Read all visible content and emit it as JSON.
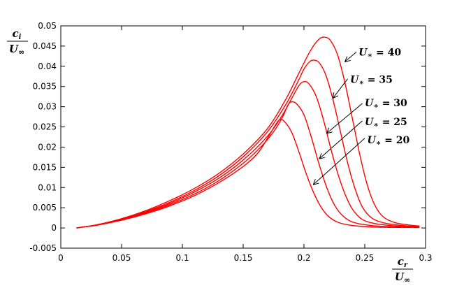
{
  "chart_data": {
    "type": "line",
    "xlim": [
      0,
      0.3
    ],
    "ylim": [
      -0.005,
      0.05
    ],
    "x_ticks": [
      {
        "value": 0,
        "label": "0"
      },
      {
        "value": 0.05,
        "label": "0.05"
      },
      {
        "value": 0.1,
        "label": "0.1"
      },
      {
        "value": 0.15,
        "label": "0.15"
      },
      {
        "value": 0.2,
        "label": "0.2"
      },
      {
        "value": 0.25,
        "label": "0.25"
      },
      {
        "value": 0.3,
        "label": "0.3"
      }
    ],
    "y_ticks": [
      {
        "value": -0.005,
        "label": "-0.005"
      },
      {
        "value": 0,
        "label": "0"
      },
      {
        "value": 0.005,
        "label": "0.005"
      },
      {
        "value": 0.01,
        "label": "0.01"
      },
      {
        "value": 0.015,
        "label": "0.015"
      },
      {
        "value": 0.02,
        "label": "0.02"
      },
      {
        "value": 0.025,
        "label": "0.025"
      },
      {
        "value": 0.03,
        "label": "0.03"
      },
      {
        "value": 0.035,
        "label": "0.035"
      },
      {
        "value": 0.04,
        "label": "0.04"
      },
      {
        "value": 0.045,
        "label": "0.045"
      },
      {
        "value": 0.05,
        "label": "0.05"
      }
    ],
    "ylabel": {
      "num": "c",
      "num_sub": "i",
      "den": "U",
      "den_sub": "∞"
    },
    "xlabel": {
      "num": "c",
      "num_sub": "r",
      "den": "U",
      "den_sub": "∞"
    },
    "grid": false,
    "line_color": "#ff0000",
    "series": [
      {
        "label": "U∗ = 40",
        "label_main": "U",
        "label_sub": "∗",
        "label_rest": " = 40",
        "points": [
          [
            0.013,
            0
          ],
          [
            0.02,
            0.0003
          ],
          [
            0.03,
            0.0008
          ],
          [
            0.05,
            0.0023
          ],
          [
            0.07,
            0.0043
          ],
          [
            0.09,
            0.0068
          ],
          [
            0.11,
            0.0098
          ],
          [
            0.13,
            0.0135
          ],
          [
            0.15,
            0.0183
          ],
          [
            0.17,
            0.0246
          ],
          [
            0.185,
            0.0318
          ],
          [
            0.195,
            0.0378
          ],
          [
            0.205,
            0.0437
          ],
          [
            0.212,
            0.0466
          ],
          [
            0.217,
            0.0472
          ],
          [
            0.222,
            0.0463
          ],
          [
            0.228,
            0.0425
          ],
          [
            0.234,
            0.0355
          ],
          [
            0.24,
            0.0268
          ],
          [
            0.246,
            0.018
          ],
          [
            0.252,
            0.0107
          ],
          [
            0.258,
            0.0058
          ],
          [
            0.265,
            0.0028
          ],
          [
            0.275,
            0.0013
          ],
          [
            0.29,
            0.0006
          ],
          [
            0.295,
            0.0005
          ]
        ],
        "arrow_from": [
          0.243,
          0.0435
        ],
        "arrow_to": [
          0.234,
          0.0412
        ],
        "label_at": [
          0.245,
          0.0435
        ]
      },
      {
        "label": "U∗ = 35",
        "label_main": "U",
        "label_sub": "∗",
        "label_rest": " = 35",
        "points": [
          [
            0.013,
            0
          ],
          [
            0.02,
            0.0003
          ],
          [
            0.03,
            0.0008
          ],
          [
            0.05,
            0.0022
          ],
          [
            0.07,
            0.0041
          ],
          [
            0.09,
            0.0064
          ],
          [
            0.11,
            0.0093
          ],
          [
            0.13,
            0.0129
          ],
          [
            0.15,
            0.0176
          ],
          [
            0.17,
            0.0238
          ],
          [
            0.185,
            0.0305
          ],
          [
            0.195,
            0.0362
          ],
          [
            0.2,
            0.0393
          ],
          [
            0.205,
            0.0412
          ],
          [
            0.209,
            0.0415
          ],
          [
            0.213,
            0.0407
          ],
          [
            0.218,
            0.0378
          ],
          [
            0.224,
            0.0316
          ],
          [
            0.23,
            0.0238
          ],
          [
            0.236,
            0.016
          ],
          [
            0.242,
            0.0097
          ],
          [
            0.248,
            0.0052
          ],
          [
            0.256,
            0.0024
          ],
          [
            0.268,
            0.0011
          ],
          [
            0.285,
            0.0005
          ],
          [
            0.295,
            0.0004
          ]
        ],
        "arrow_from": [
          0.236,
          0.0369
        ],
        "arrow_to": [
          0.224,
          0.0322
        ],
        "label_at": [
          0.238,
          0.0368
        ]
      },
      {
        "label": "U∗ = 30",
        "label_main": "U",
        "label_sub": "∗",
        "label_rest": " = 30",
        "points": [
          [
            0.013,
            0
          ],
          [
            0.02,
            0.0003
          ],
          [
            0.03,
            0.0007
          ],
          [
            0.05,
            0.0021
          ],
          [
            0.07,
            0.0039
          ],
          [
            0.09,
            0.0061
          ],
          [
            0.11,
            0.0089
          ],
          [
            0.13,
            0.0123
          ],
          [
            0.15,
            0.0168
          ],
          [
            0.17,
            0.0227
          ],
          [
            0.182,
            0.0278
          ],
          [
            0.19,
            0.0321
          ],
          [
            0.196,
            0.0353
          ],
          [
            0.2,
            0.0362
          ],
          [
            0.204,
            0.0357
          ],
          [
            0.21,
            0.0326
          ],
          [
            0.216,
            0.0268
          ],
          [
            0.222,
            0.0197
          ],
          [
            0.228,
            0.0133
          ],
          [
            0.234,
            0.0082
          ],
          [
            0.24,
            0.0046
          ],
          [
            0.248,
            0.0021
          ],
          [
            0.26,
            0.001
          ],
          [
            0.28,
            0.0004
          ],
          [
            0.295,
            0.0003
          ]
        ],
        "arrow_from": [
          0.248,
          0.0308
        ],
        "arrow_to": [
          0.219,
          0.0235
        ],
        "label_at": [
          0.25,
          0.031
        ]
      },
      {
        "label": "U∗ = 25",
        "label_main": "U",
        "label_sub": "∗",
        "label_rest": " = 25",
        "points": [
          [
            0.013,
            0
          ],
          [
            0.02,
            0.0003
          ],
          [
            0.03,
            0.0007
          ],
          [
            0.05,
            0.002
          ],
          [
            0.07,
            0.0037
          ],
          [
            0.09,
            0.0058
          ],
          [
            0.11,
            0.0084
          ],
          [
            0.13,
            0.0117
          ],
          [
            0.15,
            0.016
          ],
          [
            0.165,
            0.0202
          ],
          [
            0.175,
            0.0238
          ],
          [
            0.182,
            0.0272
          ],
          [
            0.187,
            0.0305
          ],
          [
            0.19,
            0.0312
          ],
          [
            0.194,
            0.0307
          ],
          [
            0.2,
            0.028
          ],
          [
            0.206,
            0.0225
          ],
          [
            0.212,
            0.0162
          ],
          [
            0.218,
            0.0106
          ],
          [
            0.224,
            0.0063
          ],
          [
            0.23,
            0.0036
          ],
          [
            0.238,
            0.0017
          ],
          [
            0.25,
            0.0008
          ],
          [
            0.27,
            0.0003
          ],
          [
            0.295,
            0.0002
          ]
        ],
        "arrow_from": [
          0.248,
          0.0265
        ],
        "arrow_to": [
          0.213,
          0.0172
        ],
        "label_at": [
          0.25,
          0.0263
        ]
      },
      {
        "label": "U∗ = 20",
        "label_main": "U",
        "label_sub": "∗",
        "label_rest": " = 20",
        "points": [
          [
            0.013,
            0
          ],
          [
            0.02,
            0.0003
          ],
          [
            0.03,
            0.0007
          ],
          [
            0.05,
            0.0019
          ],
          [
            0.07,
            0.0035
          ],
          [
            0.09,
            0.0055
          ],
          [
            0.11,
            0.008
          ],
          [
            0.13,
            0.0112
          ],
          [
            0.15,
            0.0152
          ],
          [
            0.162,
            0.0185
          ],
          [
            0.17,
            0.0222
          ],
          [
            0.176,
            0.0252
          ],
          [
            0.18,
            0.0268
          ],
          [
            0.184,
            0.0263
          ],
          [
            0.19,
            0.0236
          ],
          [
            0.196,
            0.0187
          ],
          [
            0.202,
            0.0133
          ],
          [
            0.208,
            0.0087
          ],
          [
            0.214,
            0.0052
          ],
          [
            0.22,
            0.0029
          ],
          [
            0.228,
            0.0014
          ],
          [
            0.24,
            0.0006
          ],
          [
            0.26,
            0.0002
          ],
          [
            0.295,
            0.0001
          ]
        ],
        "arrow_from": [
          0.25,
          0.0222
        ],
        "arrow_to": [
          0.208,
          0.0108
        ],
        "label_at": [
          0.252,
          0.0218
        ]
      }
    ]
  }
}
